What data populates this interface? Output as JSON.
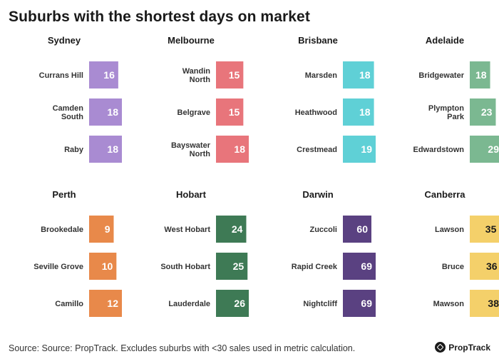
{
  "title": "Suburbs with the shortest days on market",
  "source": "Source: Source: PropTrack. Excludes suburbs with <30 sales used in metric calculation.",
  "logo": "PropTrack",
  "chart_data": [
    {
      "type": "bar",
      "orientation": "horizontal",
      "title": "Sydney",
      "color": "#a98bd2",
      "categories": [
        [
          "Currans Hill"
        ],
        [
          "Camden",
          "South"
        ],
        [
          "Raby"
        ]
      ],
      "values": [
        16,
        18,
        18
      ]
    },
    {
      "type": "bar",
      "orientation": "horizontal",
      "title": "Melbourne",
      "color": "#e8757b",
      "categories": [
        [
          "Wandin",
          "North"
        ],
        [
          "Belgrave"
        ],
        [
          "Bayswater",
          "North"
        ]
      ],
      "values": [
        15,
        15,
        18
      ]
    },
    {
      "type": "bar",
      "orientation": "horizontal",
      "title": "Brisbane",
      "color": "#5fd0d6",
      "categories": [
        [
          "Marsden"
        ],
        [
          "Heathwood"
        ],
        [
          "Crestmead"
        ]
      ],
      "values": [
        18,
        18,
        19
      ]
    },
    {
      "type": "bar",
      "orientation": "horizontal",
      "title": "Adelaide",
      "color": "#7bb891",
      "categories": [
        [
          "Bridgewater"
        ],
        [
          "Plympton",
          "Park"
        ],
        [
          "Edwardstown"
        ]
      ],
      "values": [
        18,
        23,
        29
      ]
    },
    {
      "type": "bar",
      "orientation": "horizontal",
      "title": "Perth",
      "color": "#e8894a",
      "categories": [
        [
          "Brookedale"
        ],
        [
          "Seville Grove"
        ],
        [
          "Camillo"
        ]
      ],
      "values": [
        9,
        10,
        12
      ]
    },
    {
      "type": "bar",
      "orientation": "horizontal",
      "title": "Hobart",
      "color": "#3e7a55",
      "categories": [
        [
          "West Hobart"
        ],
        [
          "South Hobart"
        ],
        [
          "Lauderdale"
        ]
      ],
      "values": [
        24,
        25,
        26
      ]
    },
    {
      "type": "bar",
      "orientation": "horizontal",
      "title": "Darwin",
      "color": "#5a4181",
      "categories": [
        [
          "Zuccoli"
        ],
        [
          "Rapid Creek"
        ],
        [
          "Nightcliff"
        ]
      ],
      "values": [
        60,
        69,
        69
      ]
    },
    {
      "type": "bar",
      "orientation": "horizontal",
      "title": "Canberra",
      "color": "#f4d06a",
      "categories": [
        [
          "Lawson"
        ],
        [
          "Bruce"
        ],
        [
          "Mawson"
        ]
      ],
      "values": [
        35,
        36,
        38
      ]
    }
  ]
}
